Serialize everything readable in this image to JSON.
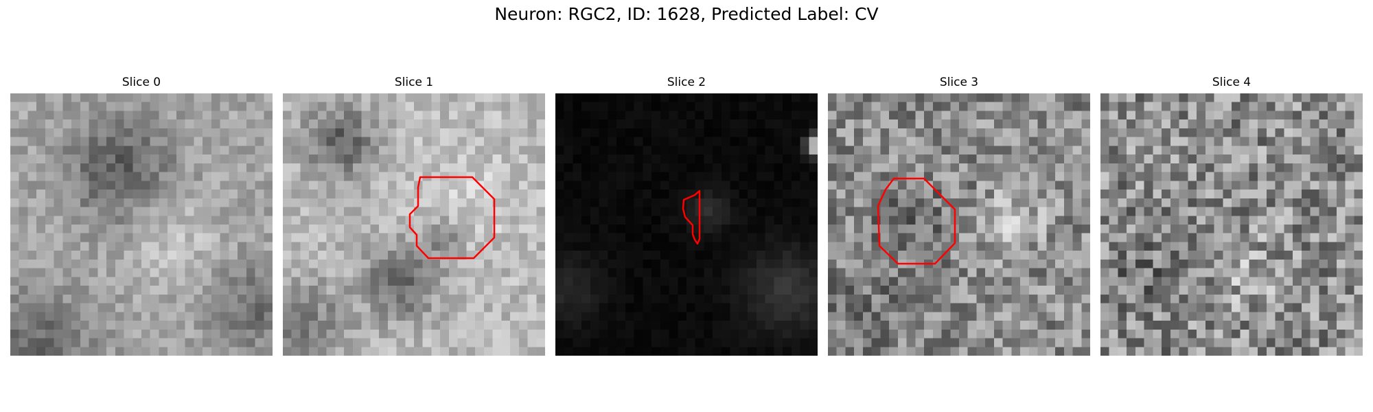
{
  "figure": {
    "title": "Neuron: RGC2, ID: 1628, Predicted Label: CV"
  },
  "panels": [
    {
      "title": "Slice 0",
      "brightness": "mid",
      "contour": false
    },
    {
      "title": "Slice 1",
      "brightness": "bright",
      "contour": true
    },
    {
      "title": "Slice 2",
      "brightness": "dark",
      "contour": true
    },
    {
      "title": "Slice 3",
      "brightness": "mid",
      "contour": true
    },
    {
      "title": "Slice 4",
      "brightness": "noisy",
      "contour": false
    }
  ],
  "colormap": "gray",
  "contour_color": "#ff0000"
}
